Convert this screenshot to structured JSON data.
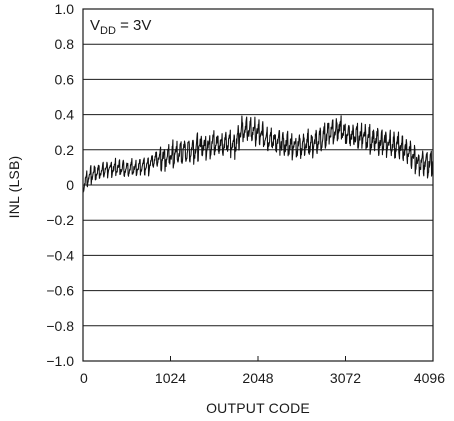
{
  "chart_data": {
    "type": "line",
    "title": "",
    "annotation": {
      "main": "V",
      "sub": "DD",
      "rest": " = 3V"
    },
    "xlabel": "OUTPUT CODE",
    "ylabel": "INL (LSB)",
    "xlim": [
      0,
      4096
    ],
    "ylim": [
      -1.0,
      1.0
    ],
    "x_ticks": [
      0,
      1024,
      2048,
      3072,
      4096
    ],
    "x_tick_labels": [
      "0",
      "1024",
      "2048",
      "3072",
      "4096"
    ],
    "y_ticks": [
      1.0,
      0.8,
      0.6,
      0.4,
      0.2,
      0,
      -0.2,
      -0.4,
      -0.6,
      -0.8,
      -1.0
    ],
    "y_tick_labels": [
      "1.0",
      "0.8",
      "0.6",
      "0.4",
      "0.2",
      "0",
      "−0.2",
      "−0.4",
      "−0.6",
      "−0.8",
      "−1.0"
    ],
    "grid": true,
    "line_color": "#111111",
    "series": [
      {
        "x": [
          0,
          64,
          128,
          192,
          256,
          384,
          512,
          640,
          768,
          800,
          896,
          1024,
          1152,
          1280,
          1408,
          1536,
          1664,
          1792,
          1856,
          1920,
          2048,
          2176,
          2304,
          2432,
          2560,
          2688,
          2816,
          2880,
          3008,
          3072,
          3200,
          3328,
          3456,
          3584,
          3712,
          3840,
          3904,
          3968,
          4032,
          4096
        ],
        "y": [
          0.0,
          0.05,
          0.07,
          0.08,
          0.09,
          0.1,
          0.1,
          0.1,
          0.11,
          0.14,
          0.16,
          0.17,
          0.19,
          0.21,
          0.23,
          0.24,
          0.24,
          0.24,
          0.33,
          0.32,
          0.3,
          0.27,
          0.24,
          0.23,
          0.23,
          0.24,
          0.27,
          0.31,
          0.32,
          0.3,
          0.28,
          0.27,
          0.25,
          0.24,
          0.22,
          0.18,
          0.15,
          0.12,
          0.13,
          0.14
        ]
      }
    ]
  }
}
